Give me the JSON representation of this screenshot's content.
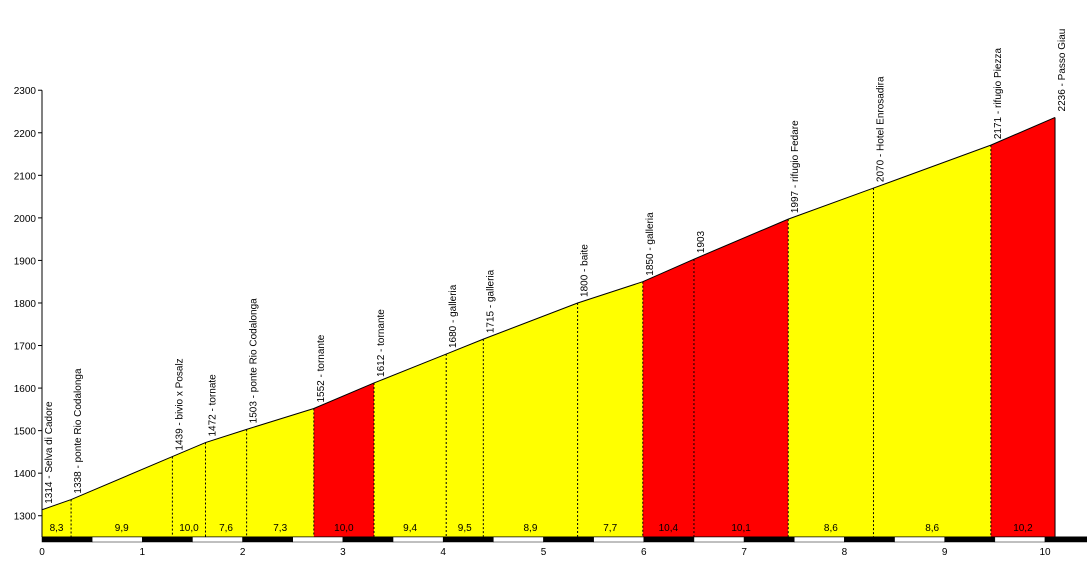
{
  "chart_data": {
    "type": "area",
    "title": "",
    "xlabel": "",
    "ylabel": "",
    "xlim": [
      0,
      10.4
    ],
    "ylim": [
      1250,
      2300
    ],
    "y_ticks": [
      "1300",
      "1400",
      "1500",
      "1600",
      "1700",
      "1800",
      "1900",
      "2000",
      "2100",
      "2200",
      "2300"
    ],
    "x_ticks": [
      "0",
      "1",
      "2",
      "3",
      "4",
      "5",
      "6",
      "7",
      "8",
      "9",
      "10"
    ],
    "points": [
      {
        "km": 0.0,
        "alt": 1314,
        "label": "1314 - Selva di Cadore"
      },
      {
        "km": 0.29,
        "alt": 1338,
        "label": "1338 - ponte Rio Codalonga"
      },
      {
        "km": 1.3,
        "alt": 1439,
        "label": "1439 - bivio x Posalz"
      },
      {
        "km": 1.63,
        "alt": 1472,
        "label": "1472 - tornate"
      },
      {
        "km": 2.04,
        "alt": 1503,
        "label": "1503 - ponte Rio Codalonga"
      },
      {
        "km": 2.71,
        "alt": 1552,
        "label": "1552 - tornante"
      },
      {
        "km": 3.31,
        "alt": 1612,
        "label": "1612 - tornante"
      },
      {
        "km": 4.03,
        "alt": 1680,
        "label": "1680 - galleria"
      },
      {
        "km": 4.4,
        "alt": 1715,
        "label": "1715 - galleria"
      },
      {
        "km": 5.34,
        "alt": 1800,
        "label": "1800 - baite"
      },
      {
        "km": 5.99,
        "alt": 1850,
        "label": "1850 - galleria"
      },
      {
        "km": 6.5,
        "alt": 1903,
        "label": "1903"
      },
      {
        "km": 7.44,
        "alt": 1997,
        "label": "1997 - rifugio Fedare"
      },
      {
        "km": 8.29,
        "alt": 2070,
        "label": "2070 - Hotel Enrosadira"
      },
      {
        "km": 9.46,
        "alt": 2171,
        "label": "2171 - rifugio Piezza"
      },
      {
        "km": 10.1,
        "alt": 2236,
        "label": "2236 - Passo Giau"
      }
    ],
    "segments": [
      {
        "gradient": "8,3",
        "color": "#ffff00"
      },
      {
        "gradient": "9,9",
        "color": "#ffff00"
      },
      {
        "gradient": "10,0",
        "color": "#ffff00"
      },
      {
        "gradient": "7,6",
        "color": "#ffff00"
      },
      {
        "gradient": "7,3",
        "color": "#ffff00"
      },
      {
        "gradient": "10,0",
        "color": "#ff0000"
      },
      {
        "gradient": "9,4",
        "color": "#ffff00"
      },
      {
        "gradient": "9,5",
        "color": "#ffff00"
      },
      {
        "gradient": "8,9",
        "color": "#ffff00"
      },
      {
        "gradient": "7,7",
        "color": "#ffff00"
      },
      {
        "gradient": "10,4",
        "color": "#ff0000"
      },
      {
        "gradient": "10,1",
        "color": "#ff0000"
      },
      {
        "gradient": "8,6",
        "color": "#ffff00"
      },
      {
        "gradient": "8,6",
        "color": "#ffff00"
      },
      {
        "gradient": "10,2",
        "color": "#ff0000"
      }
    ],
    "grid": false,
    "legend": "none"
  }
}
